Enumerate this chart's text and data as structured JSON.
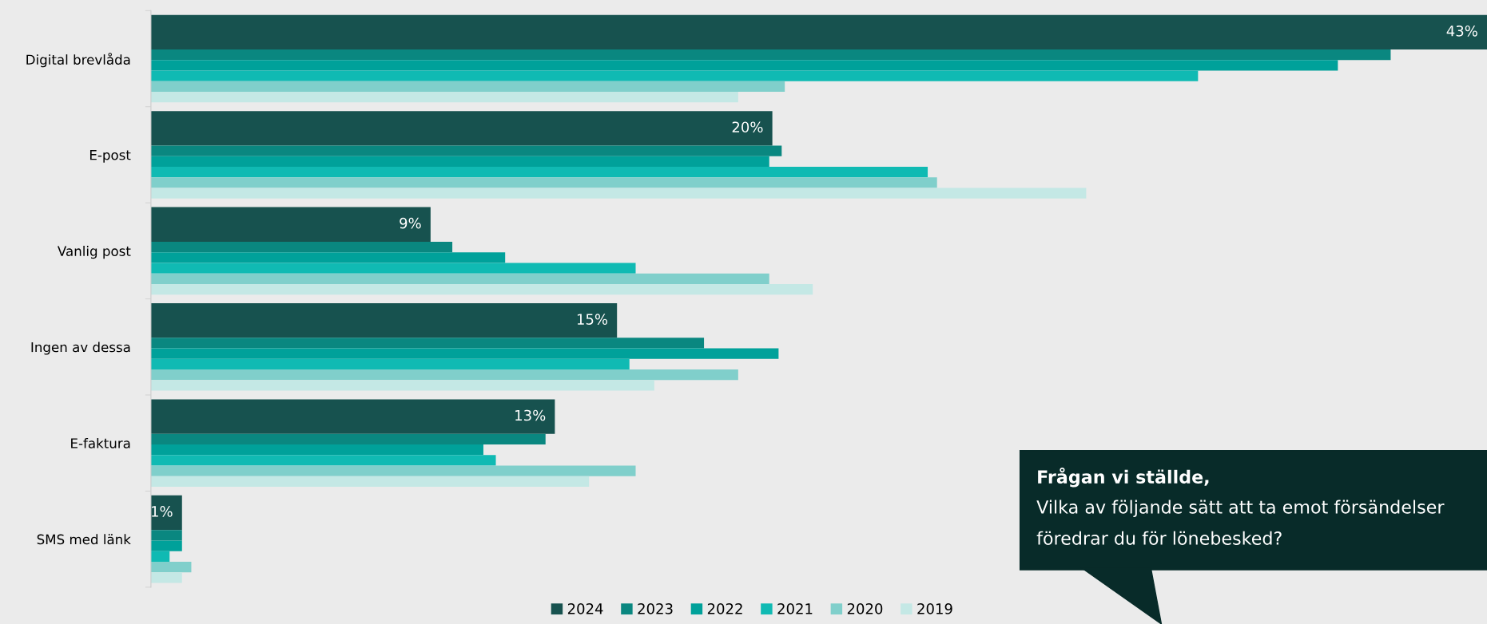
{
  "chart_data": {
    "type": "bar",
    "orientation": "horizontal",
    "categories": [
      "Digital brevlåda",
      "E-post",
      "Vanlig post",
      "Ingen av dessa",
      "E-faktura",
      "SMS med länk"
    ],
    "tick_labels": "y",
    "series": [
      {
        "name": "2024",
        "color": "#17524f",
        "values": [
          43,
          20,
          9,
          15,
          13,
          1
        ],
        "value_labels": [
          "43%",
          "20%",
          "9%",
          "15%",
          "13%",
          "1%"
        ]
      },
      {
        "name": "2023",
        "color": "#0a8780",
        "values": [
          39.9,
          20.3,
          9.7,
          17.8,
          12.7,
          1.0
        ]
      },
      {
        "name": "2022",
        "color": "#00a19a",
        "values": [
          38.2,
          19.9,
          11.4,
          20.2,
          10.7,
          1.0
        ]
      },
      {
        "name": "2021",
        "color": "#10bab3",
        "values": [
          33.7,
          25.0,
          15.6,
          15.4,
          11.1,
          0.6
        ]
      },
      {
        "name": "2020",
        "color": "#80cfcb",
        "values": [
          20.4,
          25.3,
          19.9,
          18.9,
          15.6,
          1.3
        ]
      },
      {
        "name": "2019",
        "color": "#c4e8e5",
        "values": [
          18.9,
          30.1,
          21.3,
          16.2,
          14.1,
          1.0
        ]
      }
    ],
    "annotations": [
      "Frågan vi ställde,",
      "Vilka av följande sätt att ta emot försändelser",
      "föredrar du för lönebesked?"
    ],
    "legend": "bottom",
    "grid": false
  }
}
